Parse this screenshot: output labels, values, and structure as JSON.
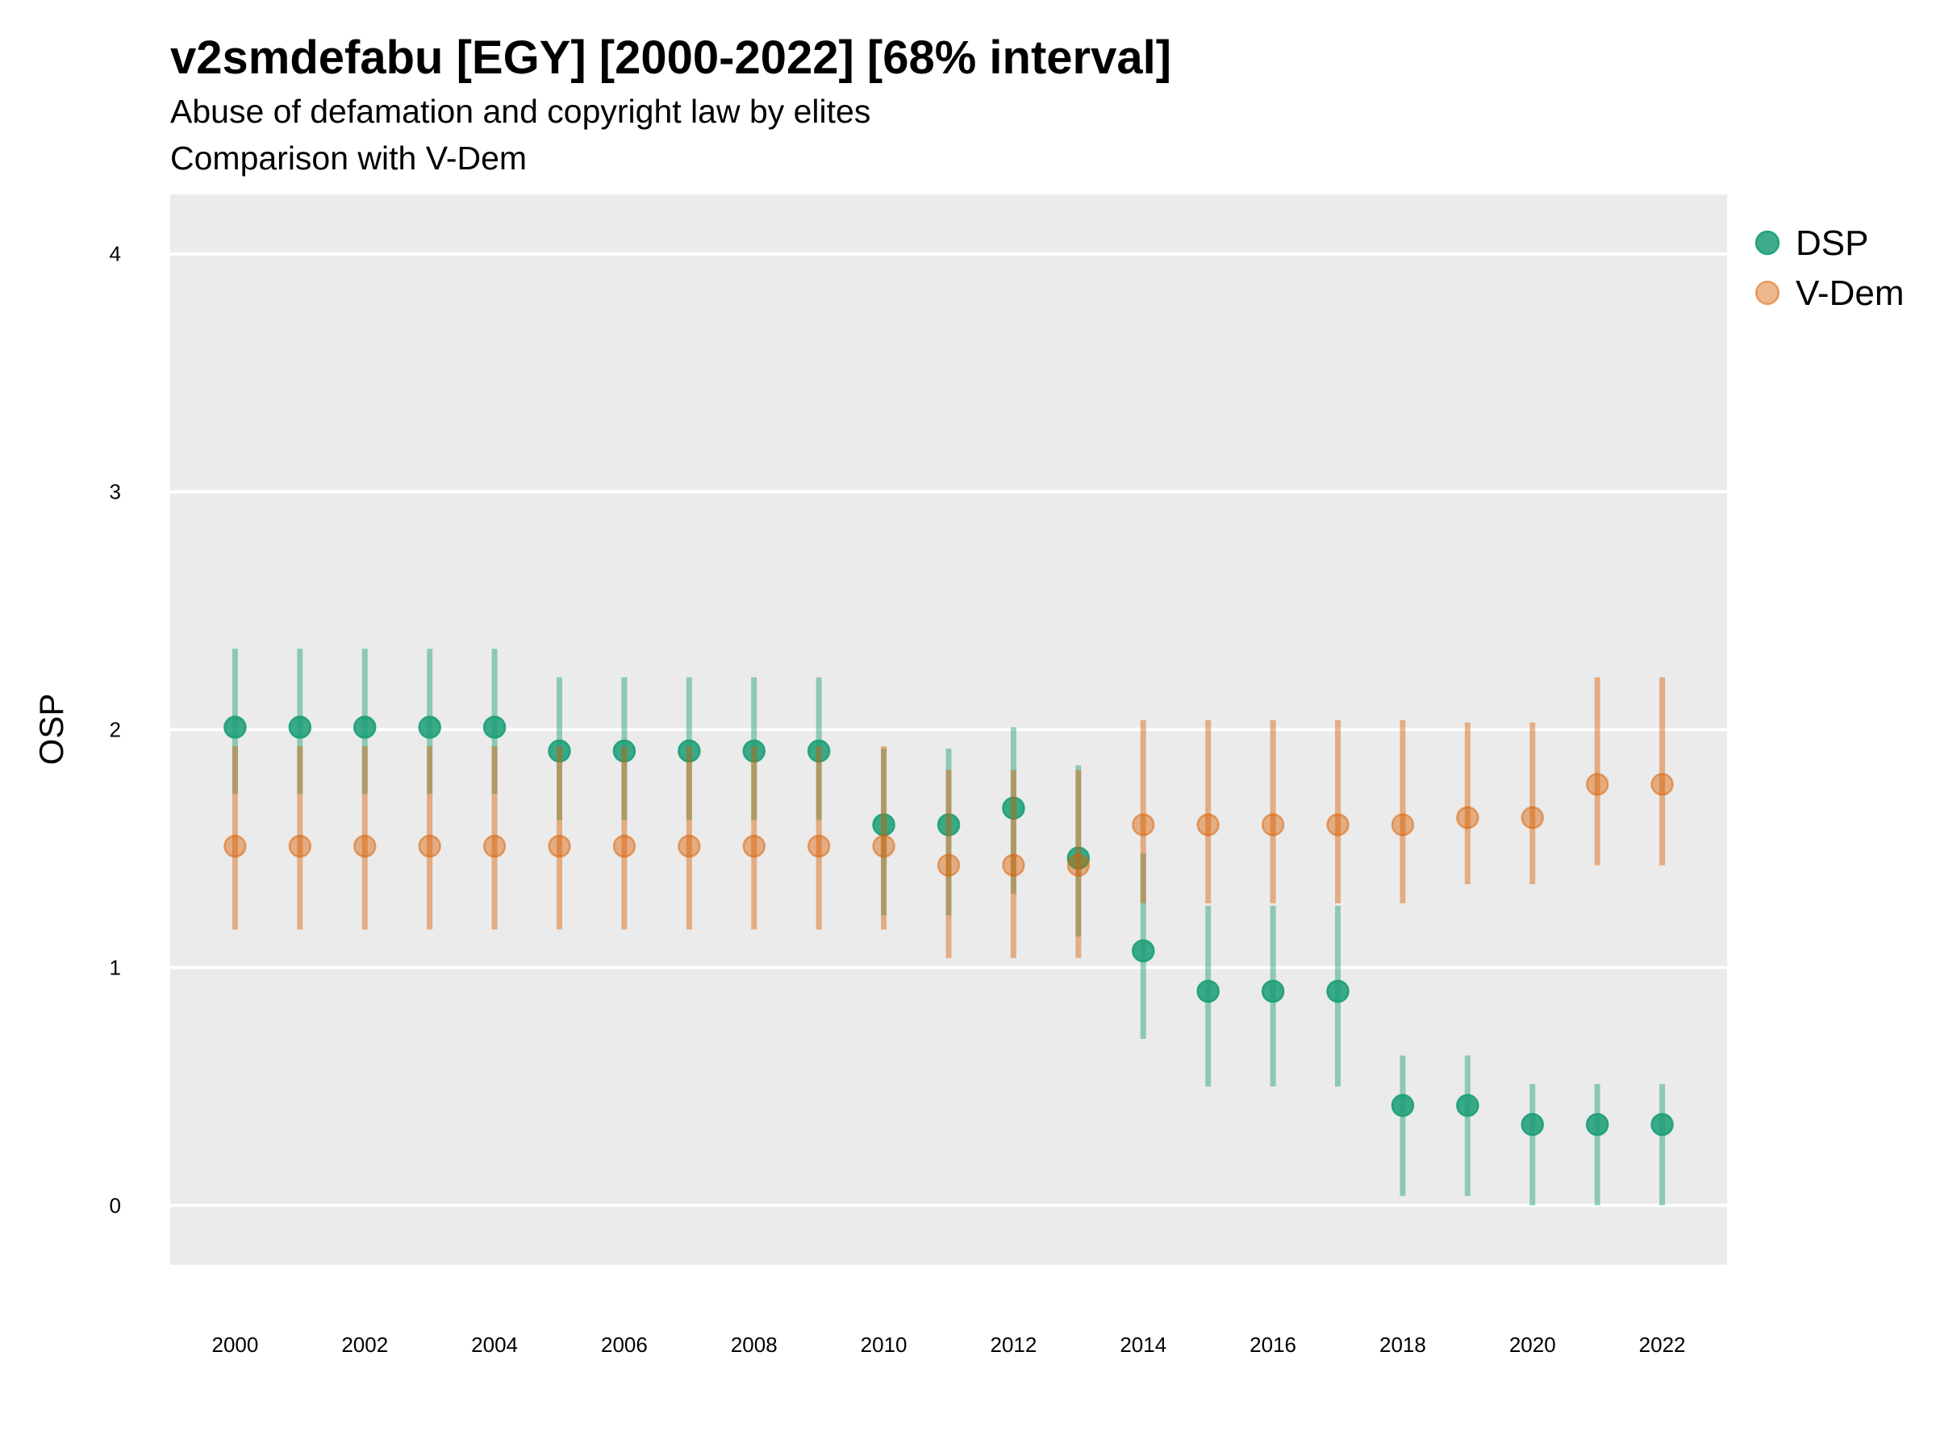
{
  "chart_data": {
    "type": "scatter",
    "title": "v2smdefabu [EGY] [2000-2022] [68% interval]",
    "subtitle_lines": [
      "Abuse of defamation and copyright law by elites",
      "Comparison with V-Dem"
    ],
    "xlabel": "",
    "ylabel": "OSP",
    "xlim": [
      1999.0,
      2023.0
    ],
    "ylim": [
      -0.25,
      4.25
    ],
    "y_ticks": [
      "0",
      "1",
      "2",
      "3",
      "4"
    ],
    "x_ticks": [
      "2000",
      "2002",
      "2004",
      "2006",
      "2008",
      "2010",
      "2012",
      "2014",
      "2016",
      "2018",
      "2020",
      "2022"
    ],
    "grid": true,
    "legend_position": "top-right",
    "x": [
      2000,
      2001,
      2002,
      2003,
      2004,
      2005,
      2006,
      2007,
      2008,
      2009,
      2010,
      2011,
      2012,
      2013,
      2014,
      2015,
      2016,
      2017,
      2018,
      2019,
      2020,
      2021,
      2022
    ],
    "series": [
      {
        "name": "DSP",
        "color": "#1b9e77",
        "values": [
          2.01,
          2.01,
          2.01,
          2.01,
          2.01,
          1.91,
          1.91,
          1.91,
          1.91,
          1.91,
          1.6,
          1.6,
          1.67,
          1.46,
          1.07,
          0.9,
          0.9,
          0.9,
          0.42,
          0.42,
          0.34,
          0.34,
          0.34
        ],
        "lower": [
          1.73,
          1.73,
          1.73,
          1.73,
          1.73,
          1.62,
          1.62,
          1.62,
          1.62,
          1.62,
          1.22,
          1.22,
          1.31,
          1.13,
          0.7,
          0.5,
          0.5,
          0.5,
          0.04,
          0.04,
          0.0,
          0.0,
          0.0
        ],
        "upper": [
          2.34,
          2.34,
          2.34,
          2.34,
          2.34,
          2.22,
          2.22,
          2.22,
          2.22,
          2.22,
          1.92,
          1.92,
          2.01,
          1.85,
          1.48,
          1.26,
          1.26,
          1.26,
          0.63,
          0.63,
          0.51,
          0.51,
          0.51
        ]
      },
      {
        "name": "V-Dem",
        "color": "#d95f02",
        "values": [
          1.51,
          1.51,
          1.51,
          1.51,
          1.51,
          1.51,
          1.51,
          1.51,
          1.51,
          1.51,
          1.51,
          1.43,
          1.43,
          1.43,
          1.6,
          1.6,
          1.6,
          1.6,
          1.6,
          1.63,
          1.63,
          1.77,
          1.77
        ],
        "lower": [
          1.16,
          1.16,
          1.16,
          1.16,
          1.16,
          1.16,
          1.16,
          1.16,
          1.16,
          1.16,
          1.16,
          1.04,
          1.04,
          1.04,
          1.27,
          1.27,
          1.27,
          1.27,
          1.27,
          1.35,
          1.35,
          1.43,
          1.43
        ],
        "upper": [
          1.93,
          1.93,
          1.93,
          1.93,
          1.93,
          1.93,
          1.93,
          1.93,
          1.93,
          1.93,
          1.93,
          1.83,
          1.83,
          1.83,
          2.04,
          2.04,
          2.04,
          2.04,
          2.04,
          2.03,
          2.03,
          2.22,
          2.22
        ]
      }
    ]
  }
}
